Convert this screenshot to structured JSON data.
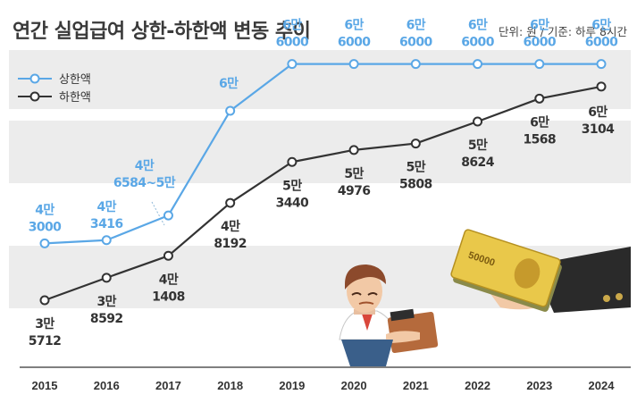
{
  "header": {
    "title": "연간 실업급여 상한-하한액 변동 추이",
    "unit_note": "단위: 원 / 기준: 하루 8시간"
  },
  "colors": {
    "upper": "#5aa7e6",
    "lower": "#333333",
    "band": "#ececec"
  },
  "chart_data": {
    "type": "line",
    "title": "연간 실업급여 상한-하한액 변동 추이",
    "xlabel": "",
    "ylabel": "",
    "unit": "단위: 원 / 기준: 하루 8시간",
    "categories": [
      "2015",
      "2016",
      "2017",
      "2018",
      "2019",
      "2020",
      "2021",
      "2022",
      "2023",
      "2024"
    ],
    "ylim": [
      25000,
      68000
    ],
    "grid": false,
    "legend_position": "top-left",
    "series": [
      {
        "name": "상한액",
        "color": "#5aa7e6",
        "values": [
          43000,
          43416,
          46584,
          60000,
          66000,
          66000,
          66000,
          66000,
          66000,
          66000
        ],
        "labels": [
          [
            "4만",
            "3000"
          ],
          [
            "4만",
            "3416"
          ],
          [
            "4만",
            "6584~5만"
          ],
          [
            "6만"
          ],
          [
            "6만",
            "6000"
          ],
          [
            "6만",
            "6000"
          ],
          [
            "6만",
            "6000"
          ],
          [
            "6만",
            "6000"
          ],
          [
            "6만",
            "6000"
          ],
          [
            "6만",
            "6000"
          ]
        ]
      },
      {
        "name": "하한액",
        "color": "#333333",
        "values": [
          35712,
          38592,
          41408,
          48192,
          53440,
          54976,
          55808,
          58624,
          61568,
          63104
        ],
        "labels": [
          [
            "3만",
            "5712"
          ],
          [
            "3만",
            "8592"
          ],
          [
            "4만",
            "1408"
          ],
          [
            "4만",
            "8192"
          ],
          [
            "5만",
            "3440"
          ],
          [
            "5만",
            "4976"
          ],
          [
            "5만",
            "5808"
          ],
          [
            "5만",
            "8624"
          ],
          [
            "6만",
            "1568"
          ],
          [
            "6만",
            "3104"
          ]
        ]
      }
    ]
  }
}
